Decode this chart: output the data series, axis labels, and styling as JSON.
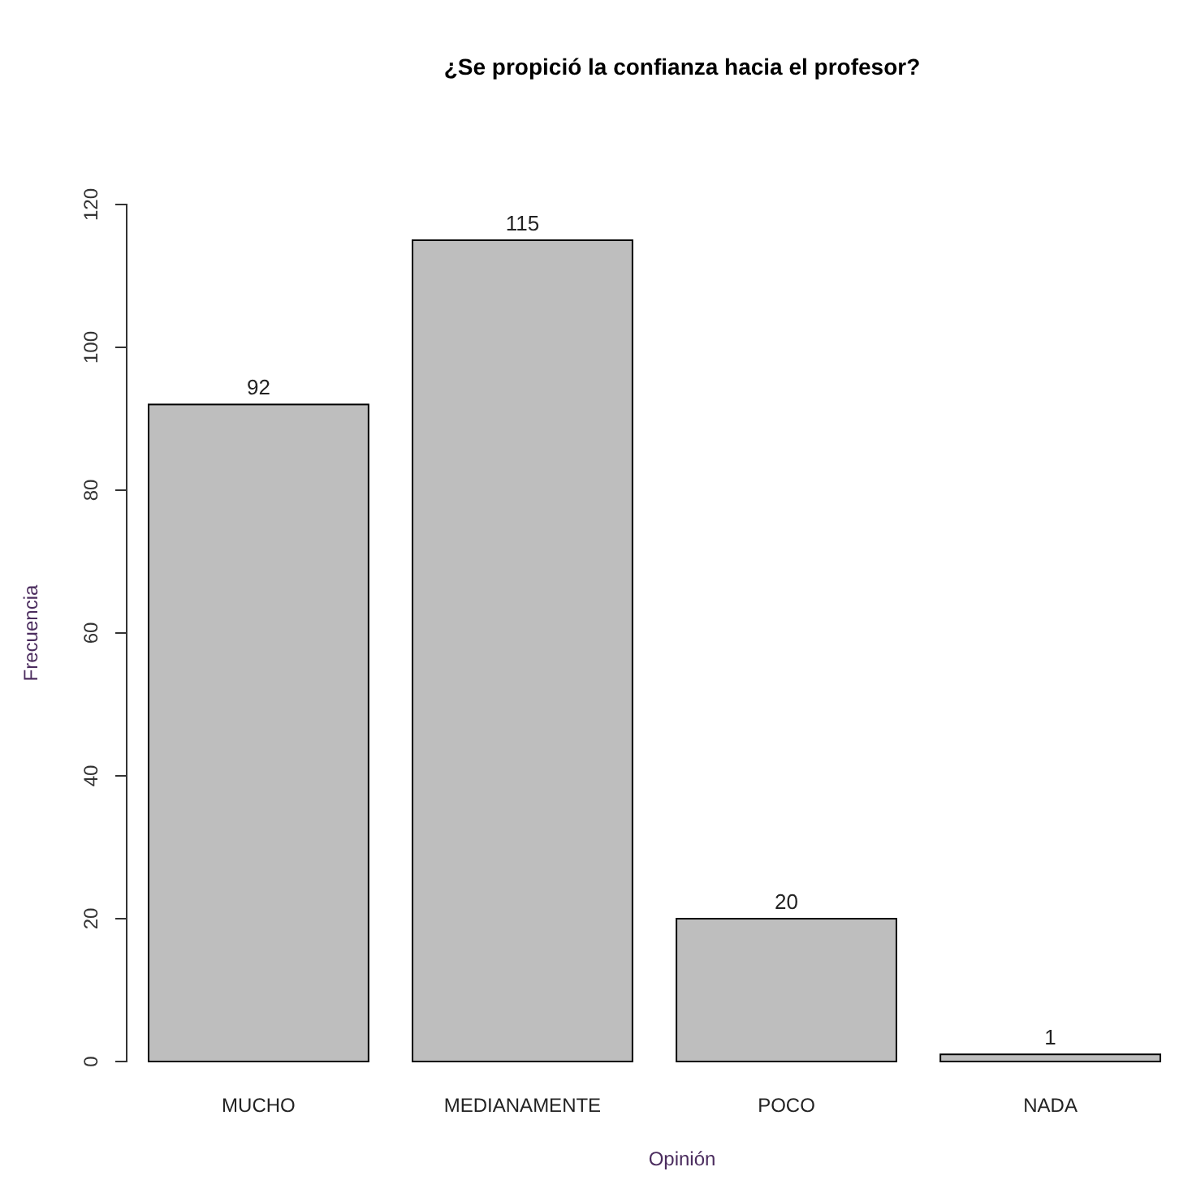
{
  "chart_data": {
    "type": "bar",
    "title": "¿Se propició la confianza hacia el profesor?",
    "xlabel": "Opinión",
    "ylabel": "Frecuencia",
    "categories": [
      "MUCHO",
      "MEDIANAMENTE",
      "POCO",
      "NADA"
    ],
    "values": [
      92,
      115,
      20,
      1
    ],
    "color": "#bebebe",
    "ylim": [
      0,
      120
    ],
    "yticks": [
      0,
      20,
      40,
      60,
      80,
      100,
      120
    ],
    "data_labels": true,
    "grid": false
  }
}
